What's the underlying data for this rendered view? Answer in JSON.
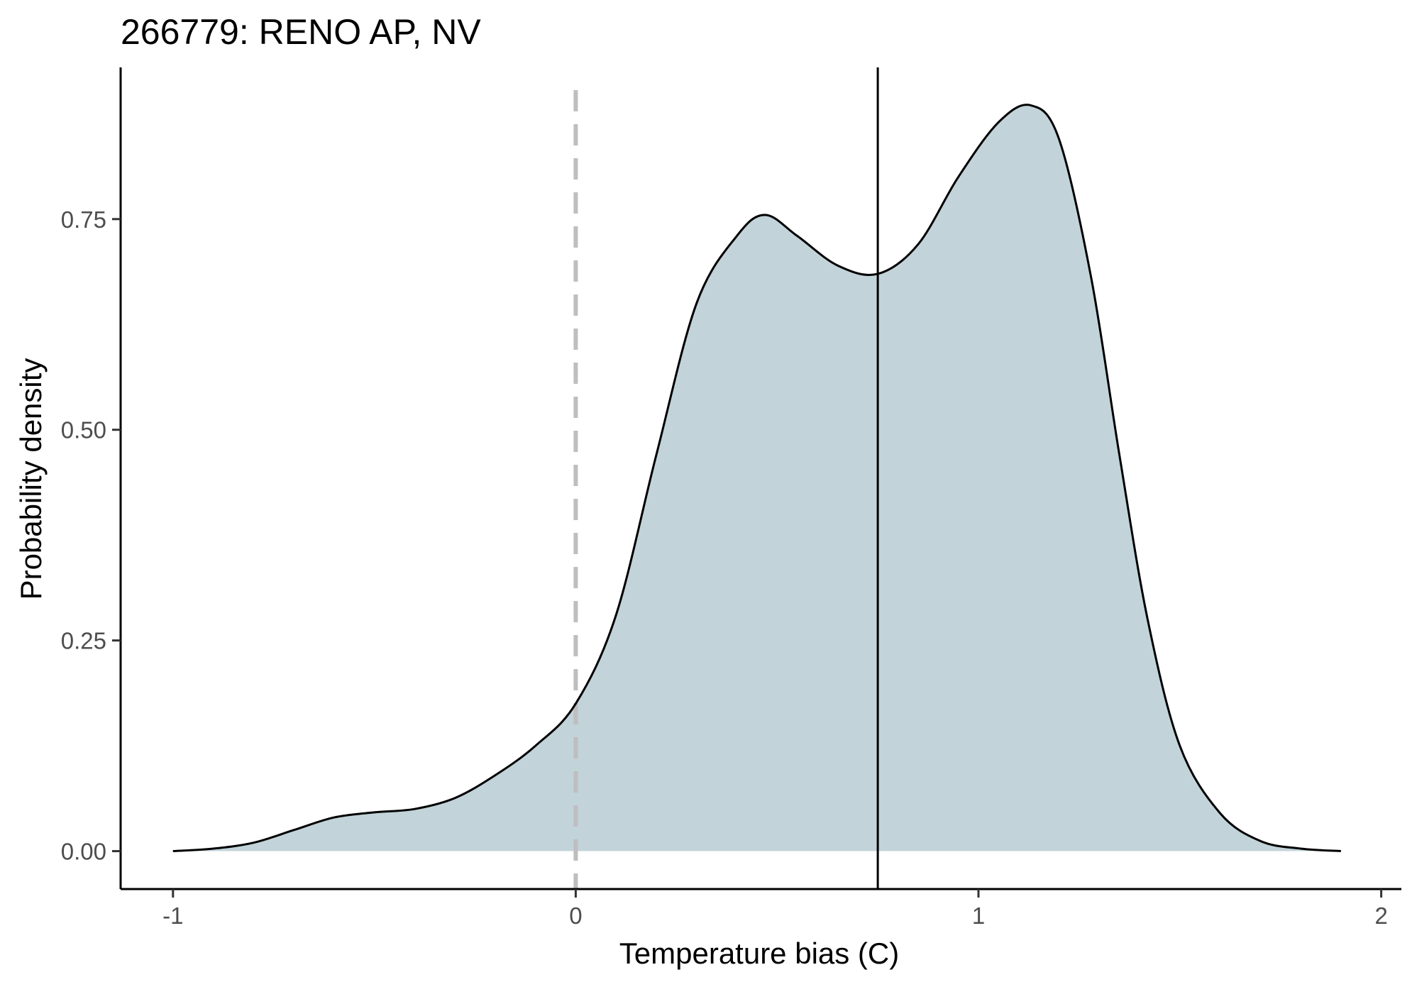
{
  "chart_data": {
    "type": "area",
    "title": "266779: RENO AP, NV",
    "xlabel": "Temperature bias (C)",
    "ylabel": "Probability density",
    "xlim": [
      -1.13,
      2.05
    ],
    "ylim": [
      -0.045,
      0.93
    ],
    "x_ticks": [
      -1,
      0,
      1,
      2
    ],
    "x_tick_labels": [
      "-1",
      "0",
      "1",
      "2"
    ],
    "y_ticks": [
      0,
      0.25,
      0.5,
      0.75
    ],
    "y_tick_labels": [
      "0.00",
      "0.25",
      "0.50",
      "0.75"
    ],
    "grid": false,
    "fill_color": "#c2d3d9",
    "line_color": "#000000",
    "reference_lines": [
      {
        "x": 0,
        "style": "dashed",
        "color": "#bebebe"
      },
      {
        "x": 0.75,
        "style": "solid",
        "color": "#000000"
      }
    ],
    "series": [
      {
        "x": [
          -1.0,
          -0.9,
          -0.8,
          -0.7,
          -0.6,
          -0.5,
          -0.4,
          -0.3,
          -0.2,
          -0.1,
          0.0,
          0.1,
          0.2,
          0.3,
          0.4,
          0.47,
          0.55,
          0.65,
          0.75,
          0.85,
          0.95,
          1.05,
          1.13,
          1.2,
          1.28,
          1.35,
          1.42,
          1.5,
          1.6,
          1.7,
          1.8,
          1.9
        ],
        "y": [
          0.0,
          0.003,
          0.01,
          0.025,
          0.04,
          0.046,
          0.05,
          0.063,
          0.09,
          0.125,
          0.175,
          0.28,
          0.47,
          0.65,
          0.73,
          0.755,
          0.73,
          0.695,
          0.685,
          0.72,
          0.8,
          0.865,
          0.885,
          0.845,
          0.68,
          0.47,
          0.275,
          0.125,
          0.045,
          0.012,
          0.003,
          0.0
        ]
      }
    ]
  }
}
